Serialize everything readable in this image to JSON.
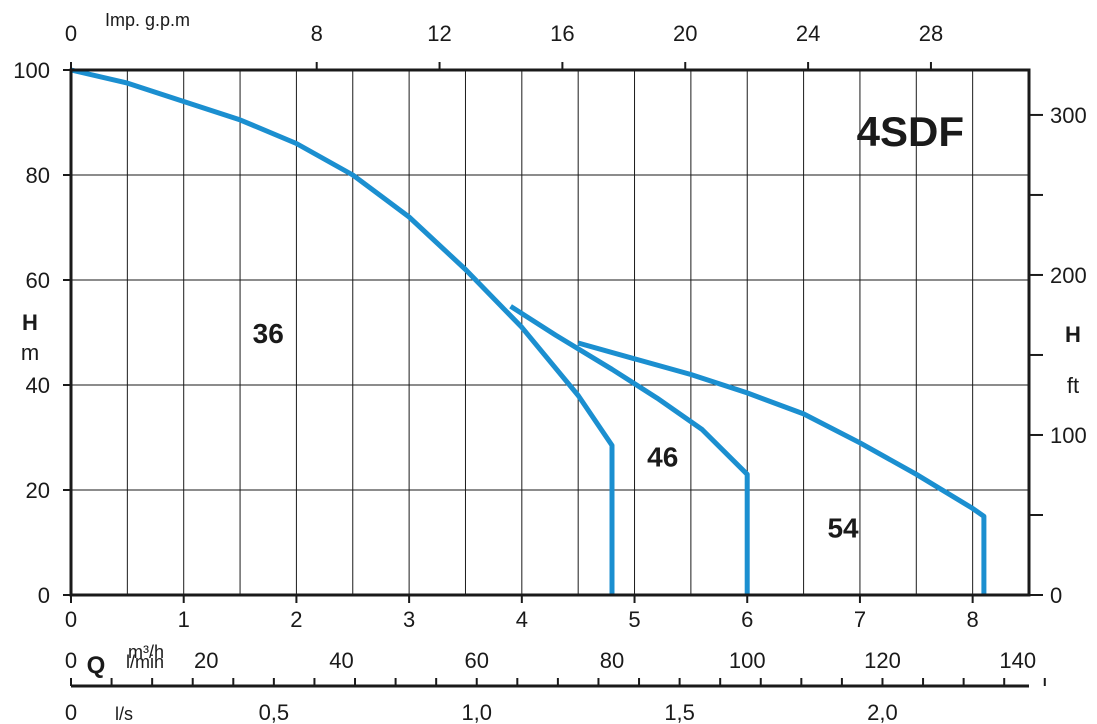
{
  "chart_data": {
    "type": "line",
    "title": "4SDF",
    "xlabel": "Q",
    "xunit": "m³/h",
    "ylabel": "H",
    "yunit": "m",
    "xlim": [
      0,
      8.5
    ],
    "ylim": [
      0,
      100
    ],
    "grid": true,
    "x_ticks": [
      "0",
      "1",
      "2",
      "3",
      "4",
      "5",
      "6",
      "7",
      "8"
    ],
    "y_ticks": [
      "0",
      "20",
      "40",
      "60",
      "80",
      "100"
    ],
    "top_axis": {
      "label": "Imp. g.p.m",
      "ticks": [
        {
          "label": "0",
          "x": 0
        },
        {
          "label": "8",
          "x": 2.18
        },
        {
          "label": "12",
          "x": 3.27
        },
        {
          "label": "16",
          "x": 4.36
        },
        {
          "label": "20",
          "x": 5.45
        },
        {
          "label": "24",
          "x": 6.54
        },
        {
          "label": "28",
          "x": 7.63
        }
      ]
    },
    "right_axis": {
      "label": "H",
      "unit": "ft",
      "ticks": [
        {
          "label": "0",
          "y": 0
        },
        {
          "label": "100",
          "y": 30.48
        },
        {
          "label": "200",
          "y": 60.96
        },
        {
          "label": "300",
          "y": 91.44
        }
      ]
    },
    "lmin_axis": {
      "unit": "l/min",
      "ticks": [
        {
          "label": "0",
          "x": 0
        },
        {
          "label": "20",
          "x": 1.2
        },
        {
          "label": "40",
          "x": 2.4
        },
        {
          "label": "60",
          "x": 3.6
        },
        {
          "label": "80",
          "x": 4.8
        },
        {
          "label": "100",
          "x": 6.0
        },
        {
          "label": "120",
          "x": 7.2
        },
        {
          "label": "140",
          "x": 8.4
        }
      ]
    },
    "ls_axis": {
      "unit": "l/s",
      "ticks": [
        {
          "label": "0",
          "x": 0
        },
        {
          "label": "0,5",
          "x": 1.8
        },
        {
          "label": "1,0",
          "x": 3.6
        },
        {
          "label": "1,5",
          "x": 5.4
        },
        {
          "label": "2,0",
          "x": 7.2
        }
      ]
    },
    "color": "#1b8fd0",
    "series": [
      {
        "name": "36",
        "label_at": [
          1.75,
          48
        ],
        "points": [
          [
            0,
            100
          ],
          [
            0.5,
            97.5
          ],
          [
            1,
            94
          ],
          [
            1.5,
            90.5
          ],
          [
            2,
            86
          ],
          [
            2.5,
            80
          ],
          [
            3,
            72
          ],
          [
            3.5,
            62
          ],
          [
            4,
            51
          ],
          [
            4.5,
            38
          ],
          [
            4.8,
            28.5
          ],
          [
            4.8,
            0
          ]
        ]
      },
      {
        "name": "46",
        "label_at": [
          5.25,
          24.5
        ],
        "points": [
          [
            3.9,
            55
          ],
          [
            4.3,
            49.5
          ],
          [
            4.8,
            43
          ],
          [
            5.2,
            37.5
          ],
          [
            5.6,
            31.5
          ],
          [
            6,
            23
          ],
          [
            6,
            0
          ]
        ]
      },
      {
        "name": "54",
        "label_at": [
          6.85,
          11
        ],
        "points": [
          [
            4.5,
            48
          ],
          [
            5,
            45
          ],
          [
            5.5,
            42
          ],
          [
            6,
            38.5
          ],
          [
            6.5,
            34.5
          ],
          [
            7,
            29
          ],
          [
            7.5,
            23
          ],
          [
            8,
            16.5
          ],
          [
            8.1,
            15
          ],
          [
            8.1,
            0
          ]
        ]
      }
    ]
  }
}
